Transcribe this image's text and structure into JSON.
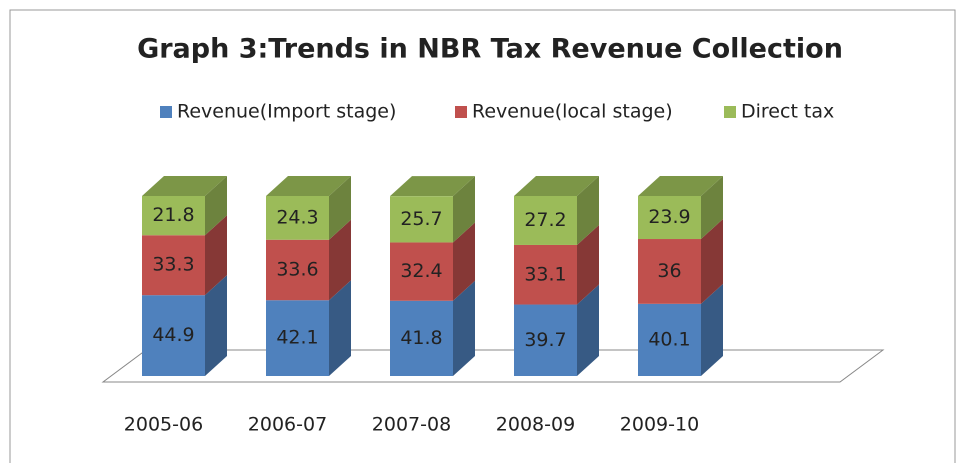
{
  "chart_data": {
    "type": "bar",
    "stacked": true,
    "title": "Graph 3:Trends in NBR Tax Revenue Collection",
    "categories": [
      "2005-06",
      "2006-07",
      "2007-08",
      "2008-09",
      "2009-10"
    ],
    "series": [
      {
        "name": "Revenue(Import stage)",
        "color": "#4f81bd",
        "values": [
          44.9,
          42.1,
          41.8,
          39.7,
          40.1
        ]
      },
      {
        "name": "Revenue(local stage)",
        "color": "#c0504d",
        "values": [
          33.3,
          33.6,
          32.4,
          33.1,
          36
        ]
      },
      {
        "name": "Direct tax",
        "color": "#9bbb59",
        "values": [
          21.8,
          24.3,
          25.7,
          27.2,
          23.9
        ]
      }
    ],
    "legend": "top"
  }
}
